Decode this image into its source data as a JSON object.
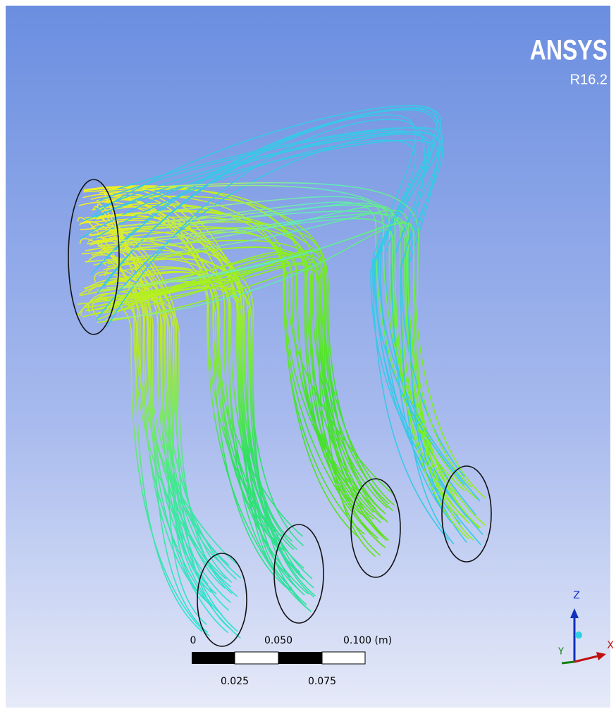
{
  "logo": {
    "title": "ANSYS",
    "version": "R16.2"
  },
  "scale_bar": {
    "labels_top": [
      "0",
      "0.050",
      "0.100 (m)"
    ],
    "labels_bottom": [
      "0.025",
      "0.075"
    ]
  },
  "triad": {
    "z": "Z",
    "x": "X",
    "y": "Y"
  }
}
